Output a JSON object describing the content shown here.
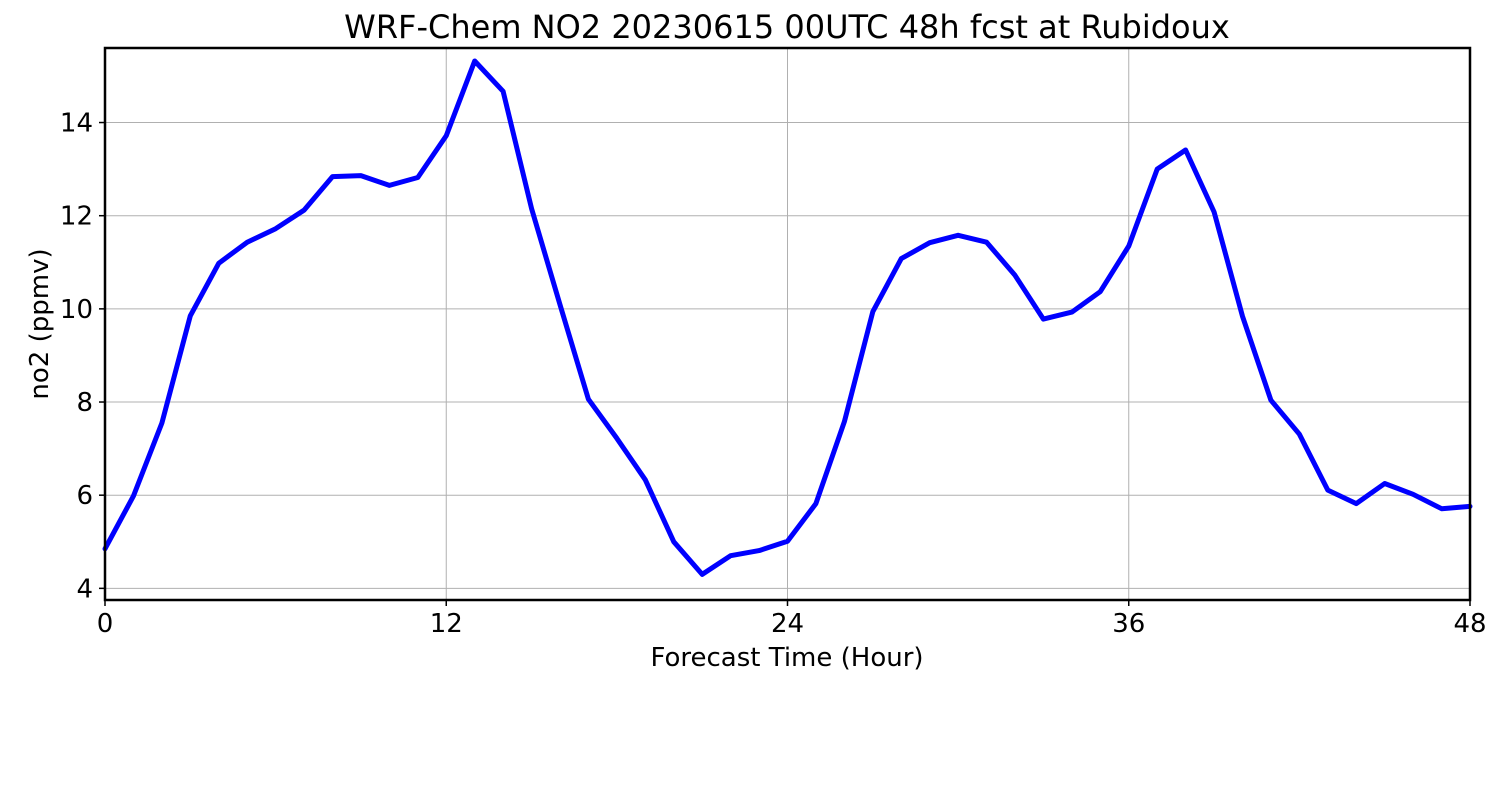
{
  "chart_data": {
    "type": "line",
    "title": "WRF-Chem NO2  20230615 00UTC 48h fcst at Rubidoux",
    "xlabel": "Forecast Time (Hour)",
    "ylabel": "no2  (ppmv)",
    "xlim": [
      0,
      48
    ],
    "ylim": [
      3.75,
      15.6
    ],
    "xticks": [
      0,
      12,
      24,
      36,
      48
    ],
    "yticks": [
      4,
      6,
      8,
      10,
      12,
      14
    ],
    "grid": true,
    "line_color": "#0000ff",
    "series": [
      {
        "x": [
          0,
          1,
          2,
          3,
          4,
          5,
          6,
          7,
          8,
          9,
          10,
          11,
          12,
          13,
          14,
          15,
          16,
          17,
          18,
          19,
          20,
          21,
          22,
          23,
          24,
          25,
          26,
          27,
          28,
          29,
          30,
          31,
          32,
          33,
          34,
          35,
          36,
          37,
          38,
          39,
          40,
          41,
          42,
          43,
          44,
          45,
          46,
          47,
          48
        ],
        "y": [
          4.85,
          5.98,
          7.55,
          9.85,
          10.98,
          11.43,
          11.72,
          12.12,
          12.84,
          12.86,
          12.65,
          12.82,
          13.72,
          15.32,
          14.67,
          12.15,
          10.09,
          8.06,
          7.22,
          6.33,
          5.0,
          4.3,
          4.7,
          4.81,
          5.01,
          5.82,
          7.58,
          9.94,
          11.08,
          11.42,
          11.58,
          11.43,
          10.72,
          9.78,
          9.93,
          10.37,
          11.35,
          13.0,
          13.41,
          12.08,
          9.84,
          8.04,
          7.31,
          6.11,
          5.82,
          6.25,
          6.02,
          5.71,
          5.76
        ]
      }
    ]
  }
}
